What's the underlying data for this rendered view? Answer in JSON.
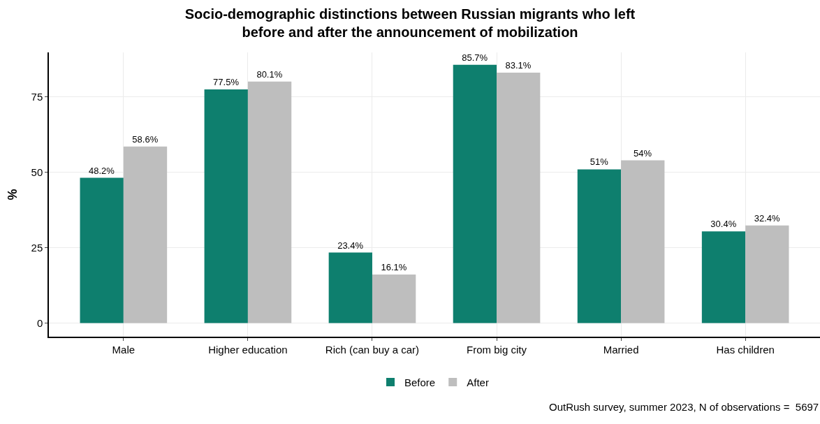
{
  "chart_data": {
    "type": "bar",
    "title": "Socio-demographic distinctions between Russian migrants who left\nbefore and after the announcement of mobilization",
    "ylabel": "%",
    "categories": [
      "Male",
      "Higher education",
      "Rich (can buy a car)",
      "From big city",
      "Married",
      "Has children"
    ],
    "series": [
      {
        "name": "Before",
        "color": "#0e7f6e",
        "values": [
          48.2,
          77.5,
          23.4,
          85.7,
          51,
          30.4
        ],
        "value_labels": [
          "48.2%",
          "77.5%",
          "23.4%",
          "85.7%",
          "51%",
          "30.4%"
        ]
      },
      {
        "name": "After",
        "color": "#bebebe",
        "values": [
          58.6,
          80.1,
          16.1,
          83.1,
          54,
          32.4
        ],
        "value_labels": [
          "58.6%",
          "80.1%",
          "16.1%",
          "83.1%",
          "54%",
          "32.4%"
        ]
      }
    ],
    "ylim": [
      -4.5,
      89.8
    ],
    "yticks": [
      0,
      25,
      50,
      75
    ],
    "grid": true,
    "legend": "bottom",
    "annotations": [
      "OutRush survey, summer 2023, N of observations =  5697"
    ]
  }
}
